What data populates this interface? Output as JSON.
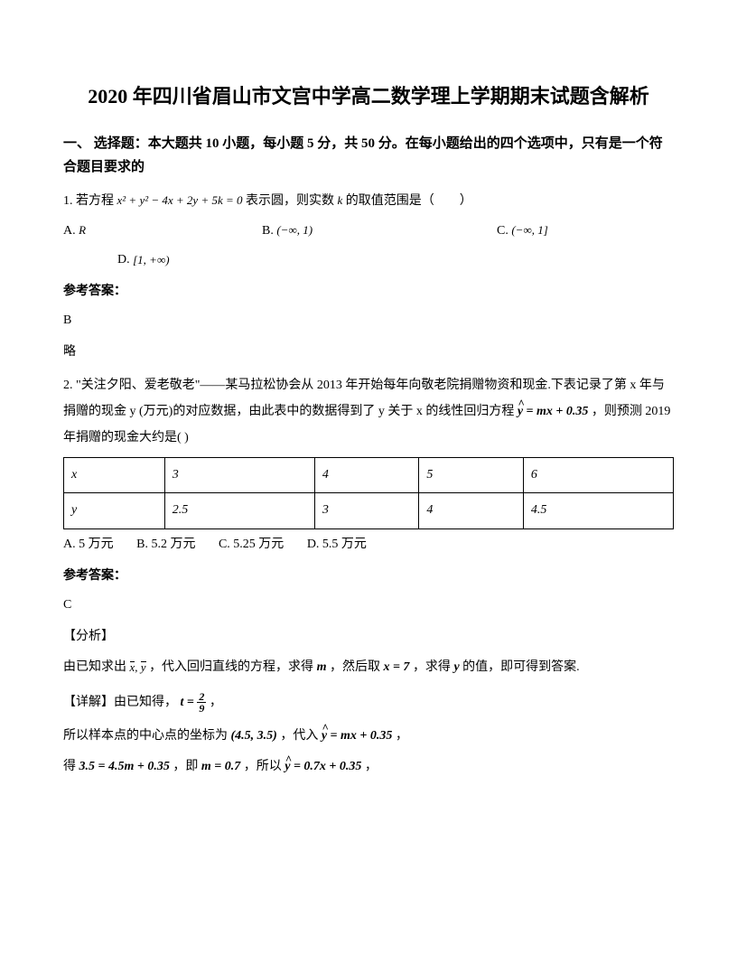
{
  "title": "2020 年四川省眉山市文宫中学高二数学理上学期期末试题含解析",
  "section1_header": "一、 选择题：本大题共 10 小题，每小题 5 分，共 50 分。在每小题给出的四个选项中，只有是一个符合题目要求的",
  "q1": {
    "stem_pre": "1. 若方程 ",
    "formula": "x² + y² − 4x + 2y + 5k = 0",
    "stem_mid": " 表示圆，则实数 ",
    "k": "k",
    "stem_post": " 的取值范围是（　　）",
    "optA_label": "A. ",
    "optA_val": "R",
    "optB_label": "B. ",
    "optB_val": "(−∞, 1)",
    "optC_label": "C. ",
    "optC_val": "(−∞, 1]",
    "optD_label": "D. ",
    "optD_val": "[1, +∞)",
    "ans_label": "参考答案：",
    "ans": "B",
    "note": "略"
  },
  "q2": {
    "stem1": "2. \"关注夕阳、爱老敬老\"——某马拉松协会从 2013 年开始每年向敬老院捐赠物资和现金.下表记录了第 x 年与捐赠的现金 y (万元)的对应数据，由此表中的数据得到了 y 关于 x 的线性回归方程",
    "reg_eq": "ŷ = mx + 0.35",
    "stem2": "，则预测 2019 年捐赠的现金大约是(    )",
    "table": {
      "header": [
        "x",
        "3",
        "4",
        "5",
        "6"
      ],
      "row": [
        "y",
        "2.5",
        "3",
        "4",
        "4.5"
      ]
    },
    "options_line": {
      "A": "A. 5 万元",
      "B": "B. 5.2 万元",
      "C": "C. 5.25 万元",
      "D": "D. 5.5 万元"
    },
    "ans_label": "参考答案：",
    "ans": "C",
    "analysis_tag": "【分析】",
    "analysis1_pre": "由已知求出",
    "analysis1_xy": "x̄, ȳ",
    "analysis1_mid1": "，代入回归直线的方程，求得 ",
    "m": "m",
    "analysis1_mid2": "，然后取 ",
    "x7": "x = 7",
    "analysis1_mid3": "，求得 ",
    "yvar": "y",
    "analysis1_post": " 的值，即可得到答案.",
    "detail_tag": "【详解】由已知得，",
    "t_eq": "t = 2/9",
    "detail_tag_post": "，",
    "line2_pre": "所以样本点的中心点的坐标为",
    "center": "(4.5, 3.5)",
    "line2_mid": "，代入 ",
    "reg_eq2": "ŷ = mx + 0.35",
    "line2_post": "，",
    "line3_pre": "得",
    "eq35": "3.5 = 4.5m + 0.35",
    "line3_mid1": "，即 ",
    "m07": "m = 0.7",
    "line3_mid2": "，所以 ",
    "final_eq": "ŷ = 0.7x + 0.35",
    "line3_post": "，"
  }
}
